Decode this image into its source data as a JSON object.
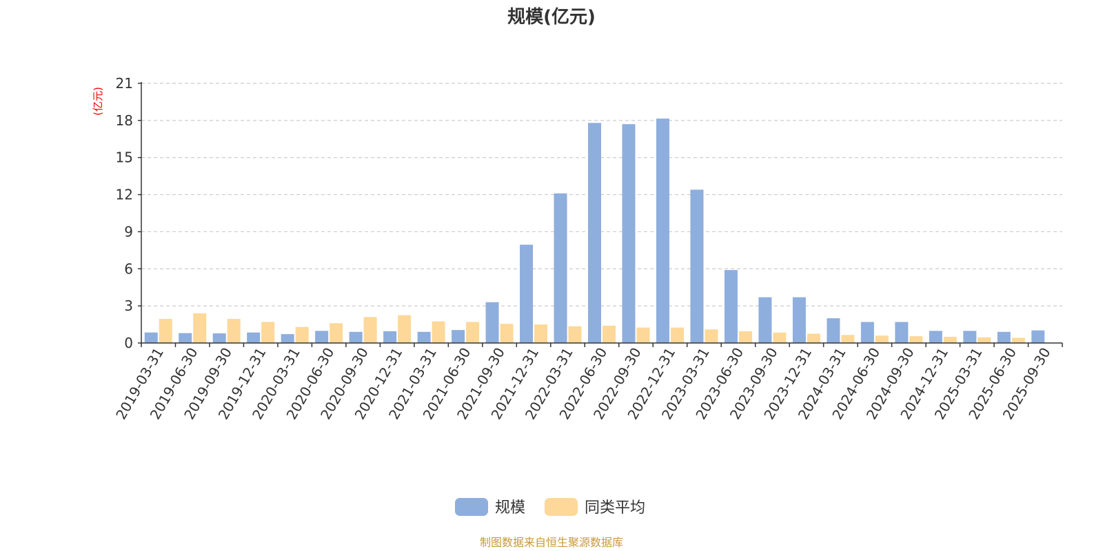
{
  "chart_data": {
    "type": "bar",
    "title": "规模(亿元)",
    "ylabel": "(亿元)",
    "ylim": [
      0,
      21
    ],
    "yticks": [
      0,
      3,
      6,
      9,
      12,
      15,
      18,
      21
    ],
    "grid": true,
    "legend_position": "bottom",
    "categories": [
      "2019-03-31",
      "2019-06-30",
      "2019-09-30",
      "2019-12-31",
      "2020-03-31",
      "2020-06-30",
      "2020-09-30",
      "2020-12-31",
      "2021-03-31",
      "2021-06-30",
      "2021-09-30",
      "2021-12-31",
      "2022-03-31",
      "2022-06-30",
      "2022-09-30",
      "2022-12-31",
      "2023-03-31",
      "2023-06-30",
      "2023-09-30",
      "2023-12-31",
      "2024-03-31",
      "2024-06-30",
      "2024-09-30",
      "2024-12-31",
      "2025-03-31",
      "2025-06-30",
      "2025-09-30"
    ],
    "series": [
      {
        "name": "规模",
        "color": "#8eaedd",
        "values": [
          0.85,
          0.8,
          0.78,
          0.85,
          0.72,
          0.98,
          0.9,
          0.95,
          0.9,
          1.05,
          3.3,
          7.95,
          12.1,
          17.8,
          17.7,
          18.15,
          12.4,
          5.9,
          3.7,
          3.7,
          2.0,
          1.7,
          1.7,
          0.98,
          0.98,
          0.9,
          1.02
        ]
      },
      {
        "name": "同类平均",
        "color": "#fdd898",
        "values": [
          1.95,
          2.4,
          1.95,
          1.7,
          1.3,
          1.6,
          2.1,
          2.25,
          1.75,
          1.7,
          1.55,
          1.5,
          1.35,
          1.4,
          1.25,
          1.25,
          1.1,
          0.95,
          0.85,
          0.75,
          0.65,
          0.6,
          0.55,
          0.5,
          0.45,
          0.42,
          null
        ]
      }
    ]
  },
  "colors": {
    "unit_label": "#ee0000",
    "source_text": "#c89a3a",
    "grid": "#cccccc",
    "axis": "#333333"
  },
  "source": "制图数据来自恒生聚源数据库"
}
